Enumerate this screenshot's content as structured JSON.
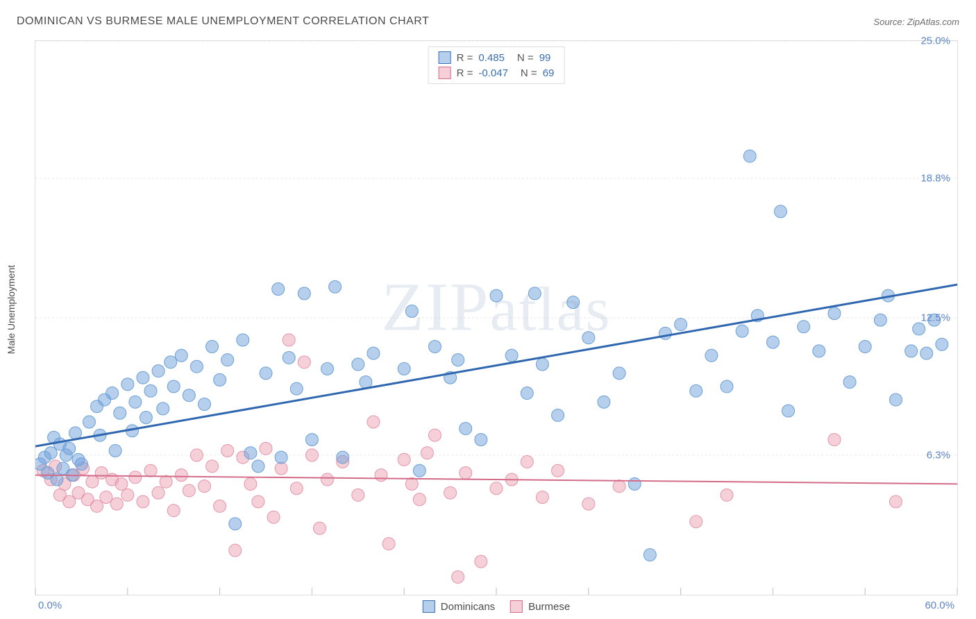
{
  "title": "DOMINICAN VS BURMESE MALE UNEMPLOYMENT CORRELATION CHART",
  "source_label": "Source:",
  "source_value": "ZipAtlas.com",
  "ylabel": "Male Unemployment",
  "watermark": "ZIPatlas",
  "chart": {
    "type": "scatter",
    "background_color": "#ffffff",
    "border_color": "#dddddd",
    "grid_color": "#e6e6e6",
    "grid_dash": "3,3",
    "xlim": [
      0,
      60
    ],
    "ylim": [
      0,
      25
    ],
    "ytick_values": [
      6.3,
      12.5,
      18.8,
      25.0
    ],
    "ytick_labels": [
      "6.3%",
      "12.5%",
      "18.8%",
      "25.0%"
    ],
    "xtick_values": [
      0,
      6,
      12,
      18,
      24,
      30,
      36,
      42,
      48,
      54,
      60
    ],
    "x_min_label": "0.0%",
    "x_max_label": "60.0%",
    "marker_radius": 9,
    "marker_opacity": 0.55,
    "line_width_blue": 3,
    "line_width_pink": 2,
    "series": [
      {
        "name": "Dominicans",
        "color_fill": "rgba(110,160,220,0.5)",
        "color_stroke": "#6a9fd4",
        "line_color": "#2f66b0",
        "R": "0.485",
        "N": "99",
        "trend": {
          "x1": 0,
          "y1": 6.7,
          "x2": 60,
          "y2": 14.0
        },
        "points": [
          [
            0.3,
            5.9
          ],
          [
            0.6,
            6.2
          ],
          [
            0.8,
            5.5
          ],
          [
            1.0,
            6.4
          ],
          [
            1.2,
            7.1
          ],
          [
            1.4,
            5.2
          ],
          [
            1.6,
            6.8
          ],
          [
            1.8,
            5.7
          ],
          [
            2.0,
            6.3
          ],
          [
            2.2,
            6.6
          ],
          [
            2.4,
            5.4
          ],
          [
            2.6,
            7.3
          ],
          [
            2.8,
            6.1
          ],
          [
            3.0,
            5.9
          ],
          [
            3.5,
            7.8
          ],
          [
            4.0,
            8.5
          ],
          [
            4.2,
            7.2
          ],
          [
            4.5,
            8.8
          ],
          [
            5.0,
            9.1
          ],
          [
            5.2,
            6.5
          ],
          [
            5.5,
            8.2
          ],
          [
            6.0,
            9.5
          ],
          [
            6.3,
            7.4
          ],
          [
            6.5,
            8.7
          ],
          [
            7.0,
            9.8
          ],
          [
            7.2,
            8.0
          ],
          [
            7.5,
            9.2
          ],
          [
            8.0,
            10.1
          ],
          [
            8.3,
            8.4
          ],
          [
            8.8,
            10.5
          ],
          [
            9.0,
            9.4
          ],
          [
            9.5,
            10.8
          ],
          [
            10.0,
            9.0
          ],
          [
            10.5,
            10.3
          ],
          [
            11.0,
            8.6
          ],
          [
            11.5,
            11.2
          ],
          [
            12.0,
            9.7
          ],
          [
            12.5,
            10.6
          ],
          [
            13.0,
            3.2
          ],
          [
            13.5,
            11.5
          ],
          [
            14.0,
            6.4
          ],
          [
            14.5,
            5.8
          ],
          [
            15.0,
            10.0
          ],
          [
            15.8,
            13.8
          ],
          [
            16.0,
            6.2
          ],
          [
            16.5,
            10.7
          ],
          [
            17.0,
            9.3
          ],
          [
            17.5,
            13.6
          ],
          [
            18.0,
            7.0
          ],
          [
            19.0,
            10.2
          ],
          [
            19.5,
            13.9
          ],
          [
            20.0,
            6.2
          ],
          [
            21.0,
            10.4
          ],
          [
            21.5,
            9.6
          ],
          [
            22.0,
            10.9
          ],
          [
            24.0,
            10.2
          ],
          [
            24.5,
            12.8
          ],
          [
            25.0,
            5.6
          ],
          [
            26.0,
            11.2
          ],
          [
            27.0,
            9.8
          ],
          [
            27.5,
            10.6
          ],
          [
            28.0,
            7.5
          ],
          [
            29.0,
            7.0
          ],
          [
            30.0,
            13.5
          ],
          [
            31.0,
            10.8
          ],
          [
            32.0,
            9.1
          ],
          [
            32.5,
            13.6
          ],
          [
            33.0,
            10.4
          ],
          [
            34.0,
            8.1
          ],
          [
            35.0,
            13.2
          ],
          [
            36.0,
            11.6
          ],
          [
            37.0,
            8.7
          ],
          [
            38.0,
            10.0
          ],
          [
            39.0,
            5.0
          ],
          [
            40.0,
            1.8
          ],
          [
            41.0,
            11.8
          ],
          [
            42.0,
            12.2
          ],
          [
            43.0,
            9.2
          ],
          [
            44.0,
            10.8
          ],
          [
            45.0,
            9.4
          ],
          [
            46.0,
            11.9
          ],
          [
            46.5,
            19.8
          ],
          [
            47.0,
            12.6
          ],
          [
            48.0,
            11.4
          ],
          [
            48.5,
            17.3
          ],
          [
            49.0,
            8.3
          ],
          [
            50.0,
            12.1
          ],
          [
            51.0,
            11.0
          ],
          [
            52.0,
            12.7
          ],
          [
            53.0,
            9.6
          ],
          [
            54.0,
            11.2
          ],
          [
            55.0,
            12.4
          ],
          [
            55.5,
            13.5
          ],
          [
            56.0,
            8.8
          ],
          [
            57.0,
            11.0
          ],
          [
            57.5,
            12.0
          ],
          [
            58.0,
            10.9
          ],
          [
            58.5,
            12.4
          ],
          [
            59.0,
            11.3
          ]
        ]
      },
      {
        "name": "Burmese",
        "color_fill": "rgba(235,150,170,0.45)",
        "color_stroke": "#e394ab",
        "line_color": "#d36a87",
        "R": "-0.047",
        "N": "69",
        "trend": {
          "x1": 0,
          "y1": 5.4,
          "x2": 60,
          "y2": 5.0
        },
        "points": [
          [
            0.5,
            5.6
          ],
          [
            1.0,
            5.2
          ],
          [
            1.3,
            5.8
          ],
          [
            1.6,
            4.5
          ],
          [
            1.9,
            5.0
          ],
          [
            2.2,
            4.2
          ],
          [
            2.5,
            5.4
          ],
          [
            2.8,
            4.6
          ],
          [
            3.1,
            5.7
          ],
          [
            3.4,
            4.3
          ],
          [
            3.7,
            5.1
          ],
          [
            4.0,
            4.0
          ],
          [
            4.3,
            5.5
          ],
          [
            4.6,
            4.4
          ],
          [
            5.0,
            5.2
          ],
          [
            5.3,
            4.1
          ],
          [
            5.6,
            5.0
          ],
          [
            6.0,
            4.5
          ],
          [
            6.5,
            5.3
          ],
          [
            7.0,
            4.2
          ],
          [
            7.5,
            5.6
          ],
          [
            8.0,
            4.6
          ],
          [
            8.5,
            5.1
          ],
          [
            9.0,
            3.8
          ],
          [
            9.5,
            5.4
          ],
          [
            10.0,
            4.7
          ],
          [
            10.5,
            6.3
          ],
          [
            11.0,
            4.9
          ],
          [
            11.5,
            5.8
          ],
          [
            12.0,
            4.0
          ],
          [
            12.5,
            6.5
          ],
          [
            13.0,
            2.0
          ],
          [
            13.5,
            6.2
          ],
          [
            14.0,
            5.0
          ],
          [
            14.5,
            4.2
          ],
          [
            15.0,
            6.6
          ],
          [
            15.5,
            3.5
          ],
          [
            16.0,
            5.7
          ],
          [
            16.5,
            11.5
          ],
          [
            17.0,
            4.8
          ],
          [
            17.5,
            10.5
          ],
          [
            18.0,
            6.3
          ],
          [
            18.5,
            3.0
          ],
          [
            19.0,
            5.2
          ],
          [
            20.0,
            6.0
          ],
          [
            21.0,
            4.5
          ],
          [
            22.0,
            7.8
          ],
          [
            22.5,
            5.4
          ],
          [
            23.0,
            2.3
          ],
          [
            24.0,
            6.1
          ],
          [
            24.5,
            5.0
          ],
          [
            25.0,
            4.3
          ],
          [
            25.5,
            6.4
          ],
          [
            26.0,
            7.2
          ],
          [
            27.0,
            4.6
          ],
          [
            27.5,
            0.8
          ],
          [
            28.0,
            5.5
          ],
          [
            29.0,
            1.5
          ],
          [
            30.0,
            4.8
          ],
          [
            31.0,
            5.2
          ],
          [
            32.0,
            6.0
          ],
          [
            33.0,
            4.4
          ],
          [
            34.0,
            5.6
          ],
          [
            36.0,
            4.1
          ],
          [
            38.0,
            4.9
          ],
          [
            43.0,
            3.3
          ],
          [
            45.0,
            4.5
          ],
          [
            52.0,
            7.0
          ],
          [
            56.0,
            4.2
          ]
        ]
      }
    ]
  },
  "legend_bottom": [
    {
      "name": "Dominicans",
      "color": "blue"
    },
    {
      "name": "Burmese",
      "color": "pink"
    }
  ]
}
